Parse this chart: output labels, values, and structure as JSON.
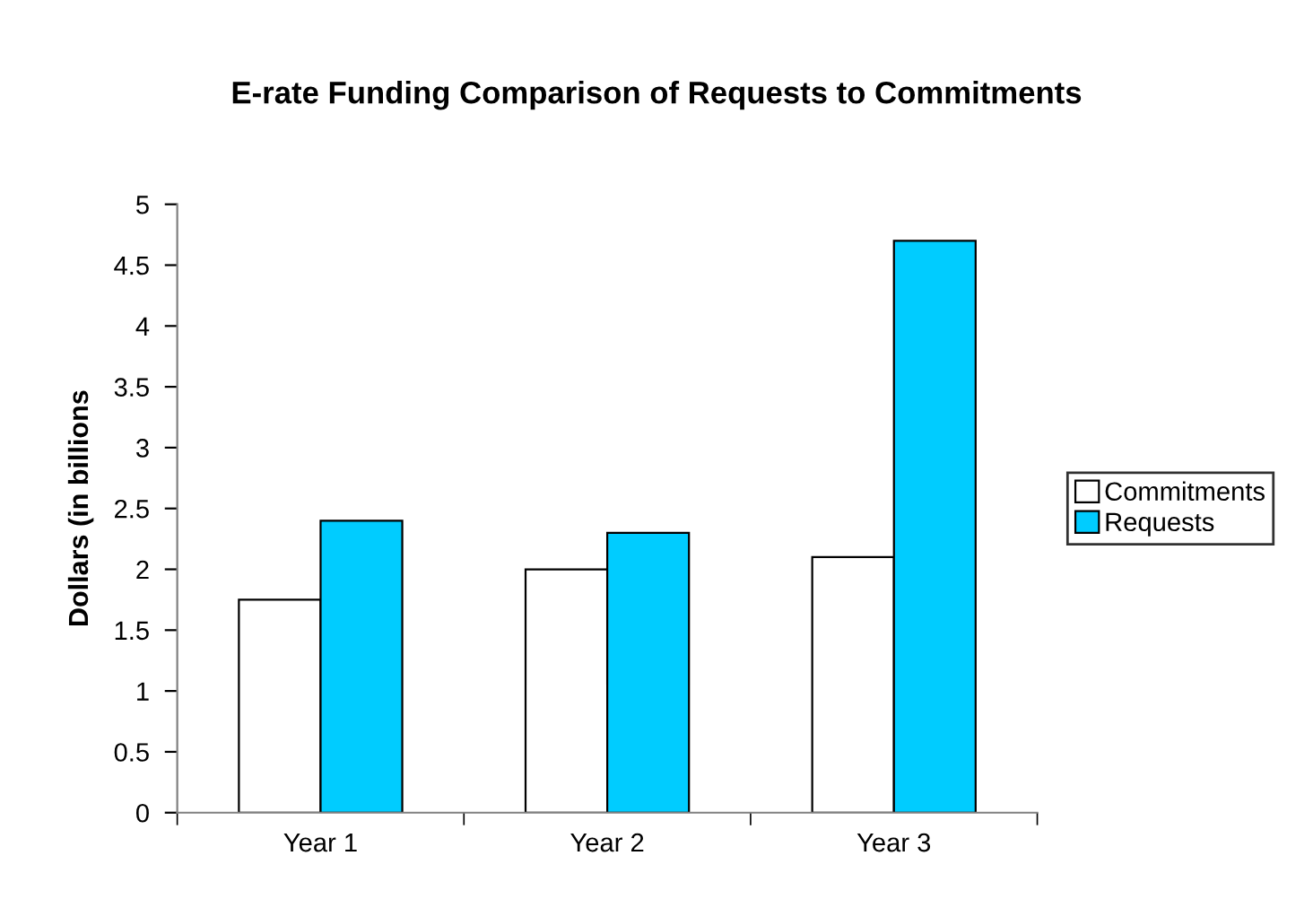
{
  "chart_data": {
    "type": "bar",
    "title": "E-rate Funding Comparison of Requests to Commitments",
    "ylabel": "Dollars (in billions",
    "categories": [
      "Year 1",
      "Year 2",
      "Year 3"
    ],
    "series": [
      {
        "name": "Commitments",
        "color": "#ffffff",
        "values": [
          1.75,
          2.0,
          2.1
        ]
      },
      {
        "name": "Requests",
        "color": "#00ccff",
        "values": [
          2.4,
          2.3,
          4.7
        ]
      }
    ],
    "ylim": [
      0,
      5
    ],
    "yticks": [
      0,
      0.5,
      1,
      1.5,
      2,
      2.5,
      3,
      3.5,
      4,
      4.5,
      5
    ],
    "grid": false,
    "legend": "right"
  }
}
